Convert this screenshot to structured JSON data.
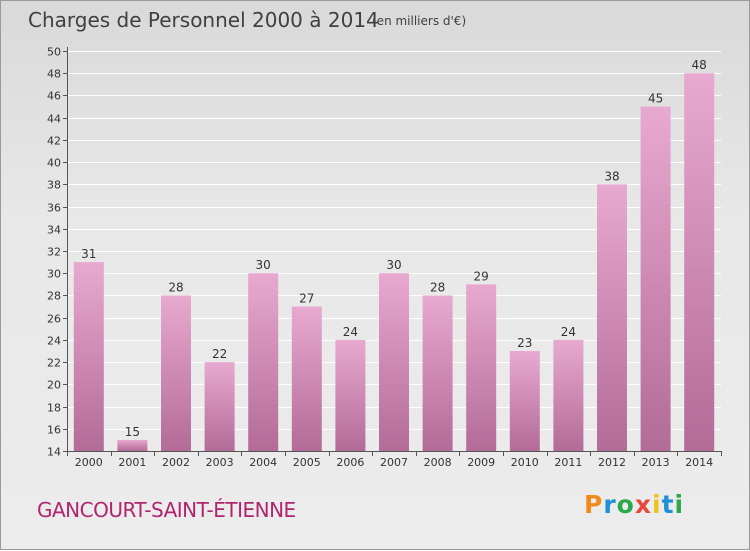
{
  "header": {
    "title": "Charges de Personnel 2000 à 2014",
    "unit": "(en milliers d'€)"
  },
  "footer": {
    "commune": "GANCOURT-SAINT-ÉTIENNE",
    "logo": "Proxiti"
  },
  "colors": {
    "bar_top": "#e8a9d0",
    "bar_bottom": "#b36b98",
    "commune_text": "#b0256e",
    "logo_letters": [
      "#f08a1c",
      "#1f8fd8",
      "#2aa84a",
      "#e8473a",
      "#f0c21a",
      "#1f8fd8",
      "#2aa84a"
    ]
  },
  "chart_data": {
    "type": "bar",
    "categories": [
      "2000",
      "2001",
      "2002",
      "2003",
      "2004",
      "2005",
      "2006",
      "2007",
      "2008",
      "2009",
      "2010",
      "2011",
      "2012",
      "2013",
      "2014"
    ],
    "values": [
      31,
      15,
      28,
      22,
      30,
      27,
      24,
      30,
      28,
      29,
      23,
      24,
      38,
      45,
      48
    ],
    "ylim": [
      14,
      50
    ],
    "yticks": [
      14,
      16,
      18,
      20,
      22,
      24,
      26,
      28,
      30,
      32,
      34,
      36,
      38,
      40,
      42,
      44,
      46,
      48,
      50
    ],
    "grid": true,
    "data_labels": true
  }
}
